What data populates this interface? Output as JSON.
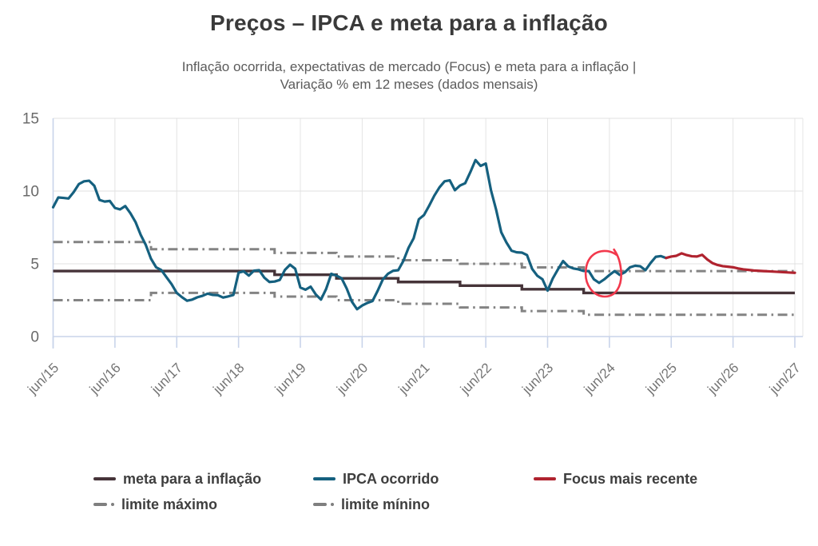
{
  "header": {
    "title": "Preços – IPCA e meta para a inflação",
    "subtitle_line1": "Inflação ocorrida, expectativas de mercado (Focus) e meta para a inflação |",
    "subtitle_line2": "Variação % em 12 meses (dados mensais)"
  },
  "legend": {
    "items": [
      {
        "label": "meta para a inflação",
        "color": "#463439",
        "style": "solid"
      },
      {
        "label": "IPCA ocorrido",
        "color": "#15607f",
        "style": "solid"
      },
      {
        "label": "Focus mais recente",
        "color": "#b0232f",
        "style": "solid"
      },
      {
        "label": "limite máximo",
        "color": "#7f7f7f",
        "style": "dashdot"
      },
      {
        "label": "limite mínino",
        "color": "#7f7f7f",
        "style": "dashdot"
      }
    ]
  },
  "chart_data": {
    "type": "line",
    "title": "Preços – IPCA e meta para a inflação",
    "xlabel": "",
    "ylabel": "",
    "ylim": [
      0,
      15
    ],
    "y_ticks": [
      0,
      5,
      10,
      15
    ],
    "grid": true,
    "x_month_zero": "jun/2015",
    "x_tick_months": [
      0,
      12,
      24,
      36,
      48,
      60,
      72,
      84,
      96,
      108,
      120,
      132,
      144
    ],
    "x_tick_labels": [
      "jun/15",
      "jun/16",
      "jun/17",
      "jun/18",
      "jun/19",
      "jun/20",
      "jun/21",
      "jun/22",
      "jun/23",
      "jun/24",
      "jun/25",
      "jun/26",
      "jun/27"
    ],
    "series": [
      {
        "name": "IPCA ocorrido",
        "color": "#15607f",
        "style": "solid",
        "width": 3.2,
        "start_month": 0,
        "values": [
          8.89,
          9.56,
          9.53,
          9.49,
          9.93,
          10.48,
          10.67,
          10.71,
          10.36,
          9.39,
          9.28,
          9.32,
          8.84,
          8.74,
          8.97,
          8.48,
          7.87,
          6.99,
          6.29,
          5.35,
          4.76,
          4.57,
          4.08,
          3.6,
          3.0,
          2.71,
          2.46,
          2.54,
          2.7,
          2.8,
          2.95,
          2.86,
          2.84,
          2.68,
          2.76,
          2.86,
          4.39,
          4.48,
          4.19,
          4.53,
          4.56,
          4.05,
          3.75,
          3.78,
          3.89,
          4.58,
          4.94,
          4.66,
          3.37,
          3.22,
          3.43,
          2.89,
          2.54,
          3.27,
          4.31,
          4.19,
          4.01,
          3.3,
          2.4,
          1.88,
          2.13,
          2.31,
          2.44,
          3.14,
          3.92,
          4.31,
          4.52,
          4.56,
          5.2,
          6.1,
          6.76,
          8.06,
          8.35,
          8.99,
          9.68,
          10.25,
          10.67,
          10.74,
          10.06,
          10.38,
          10.54,
          11.3,
          12.13,
          11.73,
          11.89,
          10.07,
          8.73,
          7.17,
          6.47,
          5.9,
          5.79,
          5.77,
          5.6,
          4.65,
          4.18,
          3.94,
          3.16,
          3.99,
          4.61,
          5.19,
          4.82,
          4.68,
          4.62,
          4.51,
          4.5,
          3.93,
          3.69,
          3.93,
          4.23,
          4.5,
          4.24,
          4.42,
          4.76,
          4.87,
          4.83,
          4.56,
          5.06,
          5.48,
          5.53,
          5.4
        ]
      },
      {
        "name": "Focus mais recente",
        "color": "#b0232f",
        "style": "solid",
        "width": 3.2,
        "start_month": 119,
        "values": [
          5.4,
          5.5,
          5.55,
          5.72,
          5.6,
          5.52,
          5.5,
          5.62,
          5.3,
          5.05,
          4.92,
          4.84,
          4.8,
          4.76,
          4.68,
          4.62,
          4.58,
          4.54,
          4.52,
          4.5,
          4.48,
          4.46,
          4.44,
          4.42,
          4.4,
          4.38
        ]
      },
      {
        "name": "meta para a inflação",
        "color": "#463439",
        "style": "solid",
        "width": 3.4,
        "step_points": [
          [
            0,
            4.5
          ],
          [
            43,
            4.25
          ],
          [
            55,
            4.0
          ],
          [
            67,
            3.75
          ],
          [
            79,
            3.5
          ],
          [
            91,
            3.25
          ],
          [
            103,
            3.0
          ],
          [
            144,
            3.0
          ]
        ]
      },
      {
        "name": "limite máximo",
        "color": "#838383",
        "style": "dashdot",
        "width": 3,
        "step_points": [
          [
            0,
            6.5
          ],
          [
            19,
            6.0
          ],
          [
            43,
            5.75
          ],
          [
            55,
            5.5
          ],
          [
            67,
            5.25
          ],
          [
            79,
            5.0
          ],
          [
            91,
            4.75
          ],
          [
            103,
            4.5
          ],
          [
            144,
            4.5
          ]
        ]
      },
      {
        "name": "limite mínino",
        "color": "#838383",
        "style": "dashdot",
        "width": 3,
        "step_points": [
          [
            0,
            2.5
          ],
          [
            19,
            3.0
          ],
          [
            43,
            2.75
          ],
          [
            55,
            2.5
          ],
          [
            67,
            2.25
          ],
          [
            79,
            2.0
          ],
          [
            91,
            1.75
          ],
          [
            103,
            1.5
          ],
          [
            144,
            1.5
          ]
        ]
      }
    ],
    "annotation": {
      "shape": "freehand-circle",
      "color": "#f2384c",
      "center_month": 106.8,
      "center_value": 4.3,
      "radius_months": 3.6,
      "radius_value": 1.6,
      "note": "hand-drawn circle highlighting the IPCA dip near jun/24"
    }
  }
}
